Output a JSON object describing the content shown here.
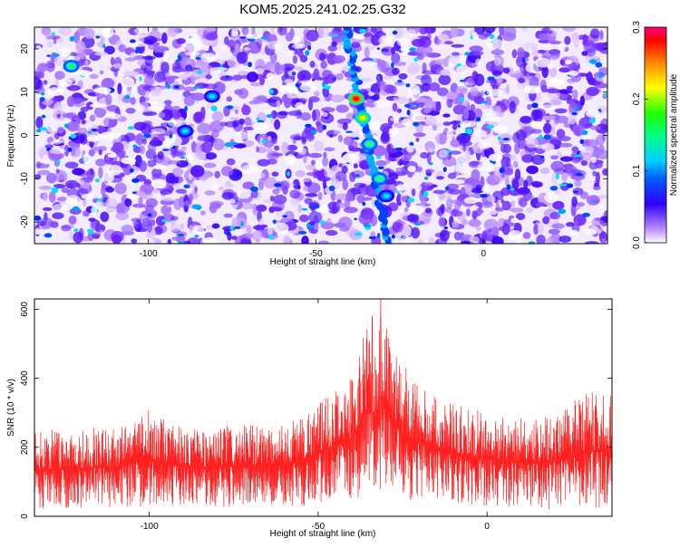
{
  "figure": {
    "title": "KOM5.2025.241.02.25.G32"
  },
  "chart_data": [
    {
      "type": "heatmap",
      "title": "KOM5.2025.241.02.25.G32",
      "xlabel": "Height of straight line (km)",
      "ylabel": "Frequency (Hz)",
      "xlim": [
        -134,
        37
      ],
      "ylim": [
        -25,
        25
      ],
      "x_ticks": [
        -100,
        -50,
        0
      ],
      "y_ticks": [
        -20,
        -10,
        0,
        10,
        20
      ],
      "colorbar": {
        "label": "Normalized spectral amplitude",
        "range": [
          0.0,
          0.3
        ],
        "ticks": [
          0.0,
          0.1,
          0.2,
          0.3
        ]
      },
      "hotspots": [
        {
          "x": -38,
          "y": 8.5,
          "value": 0.29
        },
        {
          "x": -36,
          "y": 4,
          "value": 0.18
        },
        {
          "x": -34,
          "y": -2,
          "value": 0.15
        },
        {
          "x": -31,
          "y": -10,
          "value": 0.1
        },
        {
          "x": -29,
          "y": -14,
          "value": 0.08
        },
        {
          "x": -123,
          "y": 16,
          "value": 0.12
        },
        {
          "x": -81,
          "y": 9,
          "value": 0.08
        },
        {
          "x": -89,
          "y": 1,
          "value": 0.07
        }
      ]
    },
    {
      "type": "line",
      "xlabel": "Height of straight line (km)",
      "ylabel": "SNR (10 * v/v)",
      "xlim": [
        -134,
        37
      ],
      "ylim": [
        0,
        630
      ],
      "x_ticks": [
        -100,
        -50,
        0
      ],
      "y_ticks": [
        0,
        200,
        400,
        600
      ],
      "series": [
        {
          "color": "#ff2020",
          "envelope": {
            "x": [
              -134,
              -110,
              -100,
              -90,
              -80,
              -60,
              -50,
              -40,
              -35,
              -33,
              -31,
              -28,
              -25,
              -20,
              -10,
              0,
              10,
              20,
              30,
              37
            ],
            "min": [
              20,
              25,
              25,
              30,
              25,
              25,
              35,
              45,
              70,
              80,
              60,
              55,
              50,
              40,
              30,
              30,
              25,
              20,
              20,
              20
            ],
            "max": [
              250,
              260,
              310,
              260,
              260,
              270,
              330,
              400,
              580,
              480,
              630,
              490,
              430,
              380,
              330,
              300,
              290,
              300,
              360,
              350
            ]
          },
          "peaks": [
            {
              "x": -34,
              "y": 580
            },
            {
              "x": -31.5,
              "y": 630
            },
            {
              "x": -29,
              "y": 480
            },
            {
              "x": -24,
              "y": 430
            },
            {
              "x": -40,
              "y": 395
            }
          ]
        }
      ]
    }
  ]
}
